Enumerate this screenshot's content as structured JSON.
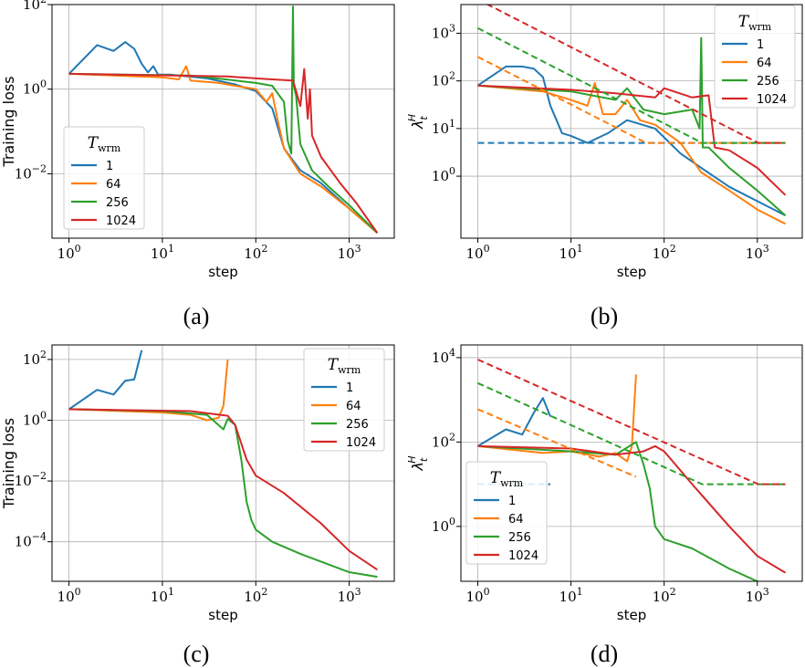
{
  "colors": {
    "1": "#1f77b4",
    "64": "#ff7f0e",
    "256": "#2ca02c",
    "1024": "#d62728"
  },
  "chart_data": [
    {
      "id": "a",
      "type": "line",
      "caption": "(a)",
      "xlabel": "step",
      "ylabel": "Training loss",
      "xscale": "log",
      "yscale": "log",
      "xlim": [
        1,
        2000
      ],
      "ylim": [
        0.0003,
        100
      ],
      "yticks": [
        "10^-2",
        "10^0",
        "10^2"
      ],
      "xticks": [
        "10^0",
        "10^1",
        "10^2",
        "10^3"
      ],
      "grid": true,
      "legend": {
        "title": "T_wrm",
        "position": "center-left",
        "entries": [
          "1",
          "64",
          "256",
          "1024"
        ]
      },
      "series": [
        {
          "name": "1",
          "style": "solid",
          "points": [
            [
              1,
              2.3
            ],
            [
              2,
              11
            ],
            [
              3,
              8
            ],
            [
              4,
              13
            ],
            [
              5,
              9
            ],
            [
              6,
              4
            ],
            [
              7,
              2.5
            ],
            [
              8,
              3.5
            ],
            [
              9,
              2.2
            ],
            [
              12,
              2.2
            ],
            [
              30,
              1.8
            ],
            [
              60,
              1.3
            ],
            [
              100,
              0.9
            ],
            [
              150,
              0.35
            ],
            [
              200,
              0.04
            ],
            [
              300,
              0.012
            ],
            [
              500,
              0.006
            ],
            [
              1000,
              0.0015
            ],
            [
              2000,
              0.0004
            ]
          ]
        },
        {
          "name": "64",
          "style": "solid",
          "points": [
            [
              1,
              2.3
            ],
            [
              10,
              1.9
            ],
            [
              15,
              1.7
            ],
            [
              18,
              3.5
            ],
            [
              20,
              1.6
            ],
            [
              40,
              1.4
            ],
            [
              60,
              1.2
            ],
            [
              100,
              1.0
            ],
            [
              130,
              0.5
            ],
            [
              150,
              0.8
            ],
            [
              170,
              0.2
            ],
            [
              200,
              0.04
            ],
            [
              300,
              0.01
            ],
            [
              500,
              0.005
            ],
            [
              1000,
              0.0015
            ],
            [
              2000,
              0.0004
            ]
          ]
        },
        {
          "name": "256",
          "style": "solid",
          "points": [
            [
              1,
              2.3
            ],
            [
              20,
              2.1
            ],
            [
              60,
              1.6
            ],
            [
              100,
              1.4
            ],
            [
              150,
              1.2
            ],
            [
              200,
              0.5
            ],
            [
              220,
              0.06
            ],
            [
              240,
              0.03
            ],
            [
              250,
              90
            ],
            [
              255,
              1.2
            ],
            [
              270,
              0.7
            ],
            [
              300,
              0.05
            ],
            [
              400,
              0.012
            ],
            [
              600,
              0.005
            ],
            [
              1000,
              0.0018
            ],
            [
              2000,
              0.0004
            ]
          ]
        },
        {
          "name": "1024",
          "style": "solid",
          "points": [
            [
              1,
              2.3
            ],
            [
              50,
              2.0
            ],
            [
              150,
              1.7
            ],
            [
              250,
              1.6
            ],
            [
              300,
              0.4
            ],
            [
              330,
              3.0
            ],
            [
              360,
              0.2
            ],
            [
              380,
              1.0
            ],
            [
              400,
              0.08
            ],
            [
              500,
              0.025
            ],
            [
              800,
              0.006
            ],
            [
              1200,
              0.002
            ],
            [
              2000,
              0.0004
            ]
          ]
        }
      ]
    },
    {
      "id": "b",
      "type": "line",
      "caption": "(b)",
      "xlabel": "step",
      "ylabel": "λ_t^H",
      "xscale": "log",
      "yscale": "log",
      "xlim": [
        1,
        2000
      ],
      "ylim": [
        0.05,
        4000
      ],
      "yticks": [
        "10^0",
        "10^1",
        "10^2",
        "10^3"
      ],
      "xticks": [
        "10^0",
        "10^1",
        "10^2",
        "10^3"
      ],
      "grid": true,
      "legend": {
        "title": "T_wrm",
        "position": "top-right",
        "entries": [
          "1",
          "64",
          "256",
          "1024"
        ]
      },
      "series": [
        {
          "name": "1",
          "style": "solid",
          "points": [
            [
              1,
              80
            ],
            [
              2,
              200
            ],
            [
              3,
              200
            ],
            [
              4,
              180
            ],
            [
              5,
              120
            ],
            [
              6,
              30
            ],
            [
              7,
              15
            ],
            [
              8,
              8
            ],
            [
              10,
              7
            ],
            [
              15,
              5
            ],
            [
              25,
              8
            ],
            [
              40,
              15
            ],
            [
              80,
              10
            ],
            [
              150,
              3
            ],
            [
              250,
              1.5
            ],
            [
              500,
              0.6
            ],
            [
              1000,
              0.3
            ],
            [
              2000,
              0.15
            ]
          ]
        },
        {
          "name": "64",
          "style": "solid",
          "points": [
            [
              1,
              80
            ],
            [
              5,
              60
            ],
            [
              10,
              40
            ],
            [
              15,
              30
            ],
            [
              18,
              90
            ],
            [
              22,
              20
            ],
            [
              30,
              20
            ],
            [
              40,
              40
            ],
            [
              55,
              15
            ],
            [
              80,
              12
            ],
            [
              150,
              5
            ],
            [
              250,
              1.2
            ],
            [
              500,
              0.5
            ],
            [
              1000,
              0.2
            ],
            [
              2000,
              0.1
            ]
          ]
        },
        {
          "name": "256",
          "style": "solid",
          "points": [
            [
              1,
              80
            ],
            [
              10,
              60
            ],
            [
              30,
              40
            ],
            [
              40,
              70
            ],
            [
              60,
              25
            ],
            [
              100,
              20
            ],
            [
              200,
              25
            ],
            [
              240,
              10
            ],
            [
              250,
              800
            ],
            [
              260,
              4
            ],
            [
              300,
              4
            ],
            [
              500,
              1.5
            ],
            [
              1000,
              0.5
            ],
            [
              2000,
              0.15
            ]
          ]
        },
        {
          "name": "1024",
          "style": "solid",
          "points": [
            [
              1,
              80
            ],
            [
              10,
              65
            ],
            [
              30,
              55
            ],
            [
              80,
              45
            ],
            [
              100,
              70
            ],
            [
              200,
              45
            ],
            [
              300,
              50
            ],
            [
              350,
              4
            ],
            [
              500,
              3.5
            ],
            [
              1000,
              1.5
            ],
            [
              2000,
              0.4
            ]
          ]
        },
        {
          "name": "1",
          "style": "dashed",
          "points": [
            [
              1,
              5
            ],
            [
              2000,
              5
            ]
          ]
        },
        {
          "name": "64",
          "style": "dashed",
          "points": [
            [
              1,
              320
            ],
            [
              64,
              5
            ],
            [
              2000,
              5
            ]
          ]
        },
        {
          "name": "256",
          "style": "dashed",
          "points": [
            [
              1,
              1280
            ],
            [
              256,
              5
            ],
            [
              2000,
              5
            ]
          ]
        },
        {
          "name": "1024",
          "style": "dashed",
          "points": [
            [
              1,
              5120
            ],
            [
              1024,
              5
            ],
            [
              2000,
              5
            ]
          ]
        }
      ]
    },
    {
      "id": "c",
      "type": "line",
      "caption": "(c)",
      "xlabel": "step",
      "ylabel": "Training loss",
      "xscale": "log",
      "yscale": "log",
      "xlim": [
        1,
        2000
      ],
      "ylim": [
        5e-06,
        300
      ],
      "yticks": [
        "10^-4",
        "10^-2",
        "10^0",
        "10^2"
      ],
      "xticks": [
        "10^0",
        "10^1",
        "10^2",
        "10^3"
      ],
      "grid": true,
      "legend": {
        "title": "T_wrm",
        "position": "top-right",
        "entries": [
          "1",
          "64",
          "256",
          "1024"
        ]
      },
      "series": [
        {
          "name": "1",
          "style": "solid",
          "points": [
            [
              1,
              2.3
            ],
            [
              2,
              10
            ],
            [
              3,
              7
            ],
            [
              4,
              20
            ],
            [
              5,
              22
            ],
            [
              6,
              200
            ]
          ]
        },
        {
          "name": "64",
          "style": "solid",
          "points": [
            [
              1,
              2.3
            ],
            [
              10,
              1.8
            ],
            [
              20,
              1.5
            ],
            [
              30,
              1.0
            ],
            [
              40,
              1.2
            ],
            [
              45,
              3
            ],
            [
              50,
              100
            ]
          ]
        },
        {
          "name": "256",
          "style": "solid",
          "points": [
            [
              1,
              2.3
            ],
            [
              10,
              2.0
            ],
            [
              30,
              1.5
            ],
            [
              45,
              0.5
            ],
            [
              50,
              1.1
            ],
            [
              60,
              0.7
            ],
            [
              70,
              0.05
            ],
            [
              80,
              0.002
            ],
            [
              90,
              0.0005
            ],
            [
              100,
              0.00025
            ],
            [
              150,
              0.0001
            ],
            [
              300,
              4e-05
            ],
            [
              1000,
              1e-05
            ],
            [
              2000,
              7e-06
            ]
          ]
        },
        {
          "name": "1024",
          "style": "solid",
          "points": [
            [
              1,
              2.3
            ],
            [
              20,
              2.0
            ],
            [
              50,
              1.4
            ],
            [
              60,
              0.7
            ],
            [
              80,
              0.05
            ],
            [
              100,
              0.015
            ],
            [
              200,
              0.004
            ],
            [
              500,
              0.0004
            ],
            [
              1000,
              5e-05
            ],
            [
              2000,
              1.2e-05
            ]
          ]
        }
      ]
    },
    {
      "id": "d",
      "type": "line",
      "caption": "(d)",
      "xlabel": "step",
      "ylabel": "λ_t^H",
      "xscale": "log",
      "yscale": "log",
      "xlim": [
        1,
        2000
      ],
      "ylim": [
        0.05,
        20000
      ],
      "yticks": [
        "10^0",
        "10^2",
        "10^4"
      ],
      "xticks": [
        "10^0",
        "10^1",
        "10^2",
        "10^3"
      ],
      "grid": true,
      "legend": {
        "title": "T_wrm",
        "position": "bottom-left",
        "entries": [
          "1",
          "64",
          "256",
          "1024"
        ]
      },
      "series": [
        {
          "name": "1",
          "style": "solid",
          "points": [
            [
              1,
              80
            ],
            [
              2,
              200
            ],
            [
              3,
              150
            ],
            [
              4,
              500
            ],
            [
              5,
              1100
            ],
            [
              6,
              400
            ]
          ]
        },
        {
          "name": "64",
          "style": "solid",
          "points": [
            [
              1,
              80
            ],
            [
              5,
              55
            ],
            [
              10,
              60
            ],
            [
              20,
              45
            ],
            [
              30,
              55
            ],
            [
              40,
              35
            ],
            [
              45,
              80
            ],
            [
              50,
              4000
            ]
          ]
        },
        {
          "name": "256",
          "style": "solid",
          "points": [
            [
              1,
              80
            ],
            [
              10,
              60
            ],
            [
              30,
              50
            ],
            [
              50,
              100
            ],
            [
              60,
              30
            ],
            [
              70,
              8
            ],
            [
              80,
              1
            ],
            [
              100,
              0.5
            ],
            [
              200,
              0.3
            ],
            [
              500,
              0.1
            ],
            [
              1000,
              0.05
            ],
            [
              2000,
              0.03
            ]
          ]
        },
        {
          "name": "1024",
          "style": "solid",
          "points": [
            [
              1,
              80
            ],
            [
              10,
              70
            ],
            [
              30,
              50
            ],
            [
              60,
              60
            ],
            [
              80,
              80
            ],
            [
              100,
              60
            ],
            [
              200,
              10
            ],
            [
              500,
              1
            ],
            [
              1000,
              0.2
            ],
            [
              2000,
              0.08
            ]
          ]
        },
        {
          "name": "1",
          "style": "dashed",
          "points": [
            [
              1,
              10
            ],
            [
              6,
              10
            ]
          ]
        },
        {
          "name": "64",
          "style": "dashed",
          "points": [
            [
              1,
              600
            ],
            [
              50,
              15
            ]
          ]
        },
        {
          "name": "256",
          "style": "dashed",
          "points": [
            [
              1,
              2500
            ],
            [
              256,
              10
            ],
            [
              2000,
              10
            ]
          ]
        },
        {
          "name": "1024",
          "style": "dashed",
          "points": [
            [
              1,
              9000
            ],
            [
              1024,
              10
            ],
            [
              2000,
              10
            ]
          ]
        }
      ]
    }
  ]
}
